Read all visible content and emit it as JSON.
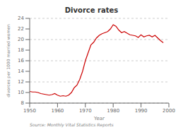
{
  "chart_data": {
    "type": "line",
    "title": "Divorce rates",
    "xlabel": "Year",
    "ylabel": "divorces per 1000 married women",
    "annotations": [
      "Source: Monthly Vital Statistics Reports"
    ],
    "x": [
      1950,
      1951,
      1952,
      1953,
      1954,
      1955,
      1956,
      1957,
      1958,
      1959,
      1960,
      1961,
      1962,
      1963,
      1964,
      1965,
      1966,
      1967,
      1968,
      1969,
      1970,
      1971,
      1972,
      1973,
      1974,
      1975,
      1976,
      1977,
      1978,
      1979,
      1980,
      1981,
      1982,
      1983,
      1984,
      1985,
      1986,
      1987,
      1988,
      1989,
      1990,
      1991,
      1992,
      1993,
      1994,
      1995,
      1996,
      1997,
      1998
    ],
    "values": [
      10.2,
      10.1,
      10.1,
      10.0,
      9.8,
      9.7,
      9.6,
      9.5,
      9.6,
      9.8,
      9.5,
      9.3,
      9.4,
      9.3,
      9.5,
      10.0,
      10.9,
      11.4,
      12.5,
      14.0,
      16.0,
      17.5,
      19.0,
      19.5,
      20.3,
      20.8,
      21.1,
      21.3,
      21.5,
      22.0,
      22.8,
      22.5,
      21.8,
      21.3,
      21.5,
      21.2,
      20.9,
      20.8,
      20.7,
      20.4,
      20.9,
      20.5,
      20.7,
      20.8,
      20.5,
      20.8,
      20.3,
      19.8,
      19.4
    ],
    "color": "#cc0000",
    "xlim": [
      1950,
      2000
    ],
    "ylim": [
      8,
      24
    ],
    "xticks": [
      1950,
      1960,
      1970,
      1980,
      1990,
      2000
    ],
    "yticks": [
      8,
      10,
      12,
      14,
      16,
      18,
      20,
      22,
      24
    ],
    "grid": true
  }
}
